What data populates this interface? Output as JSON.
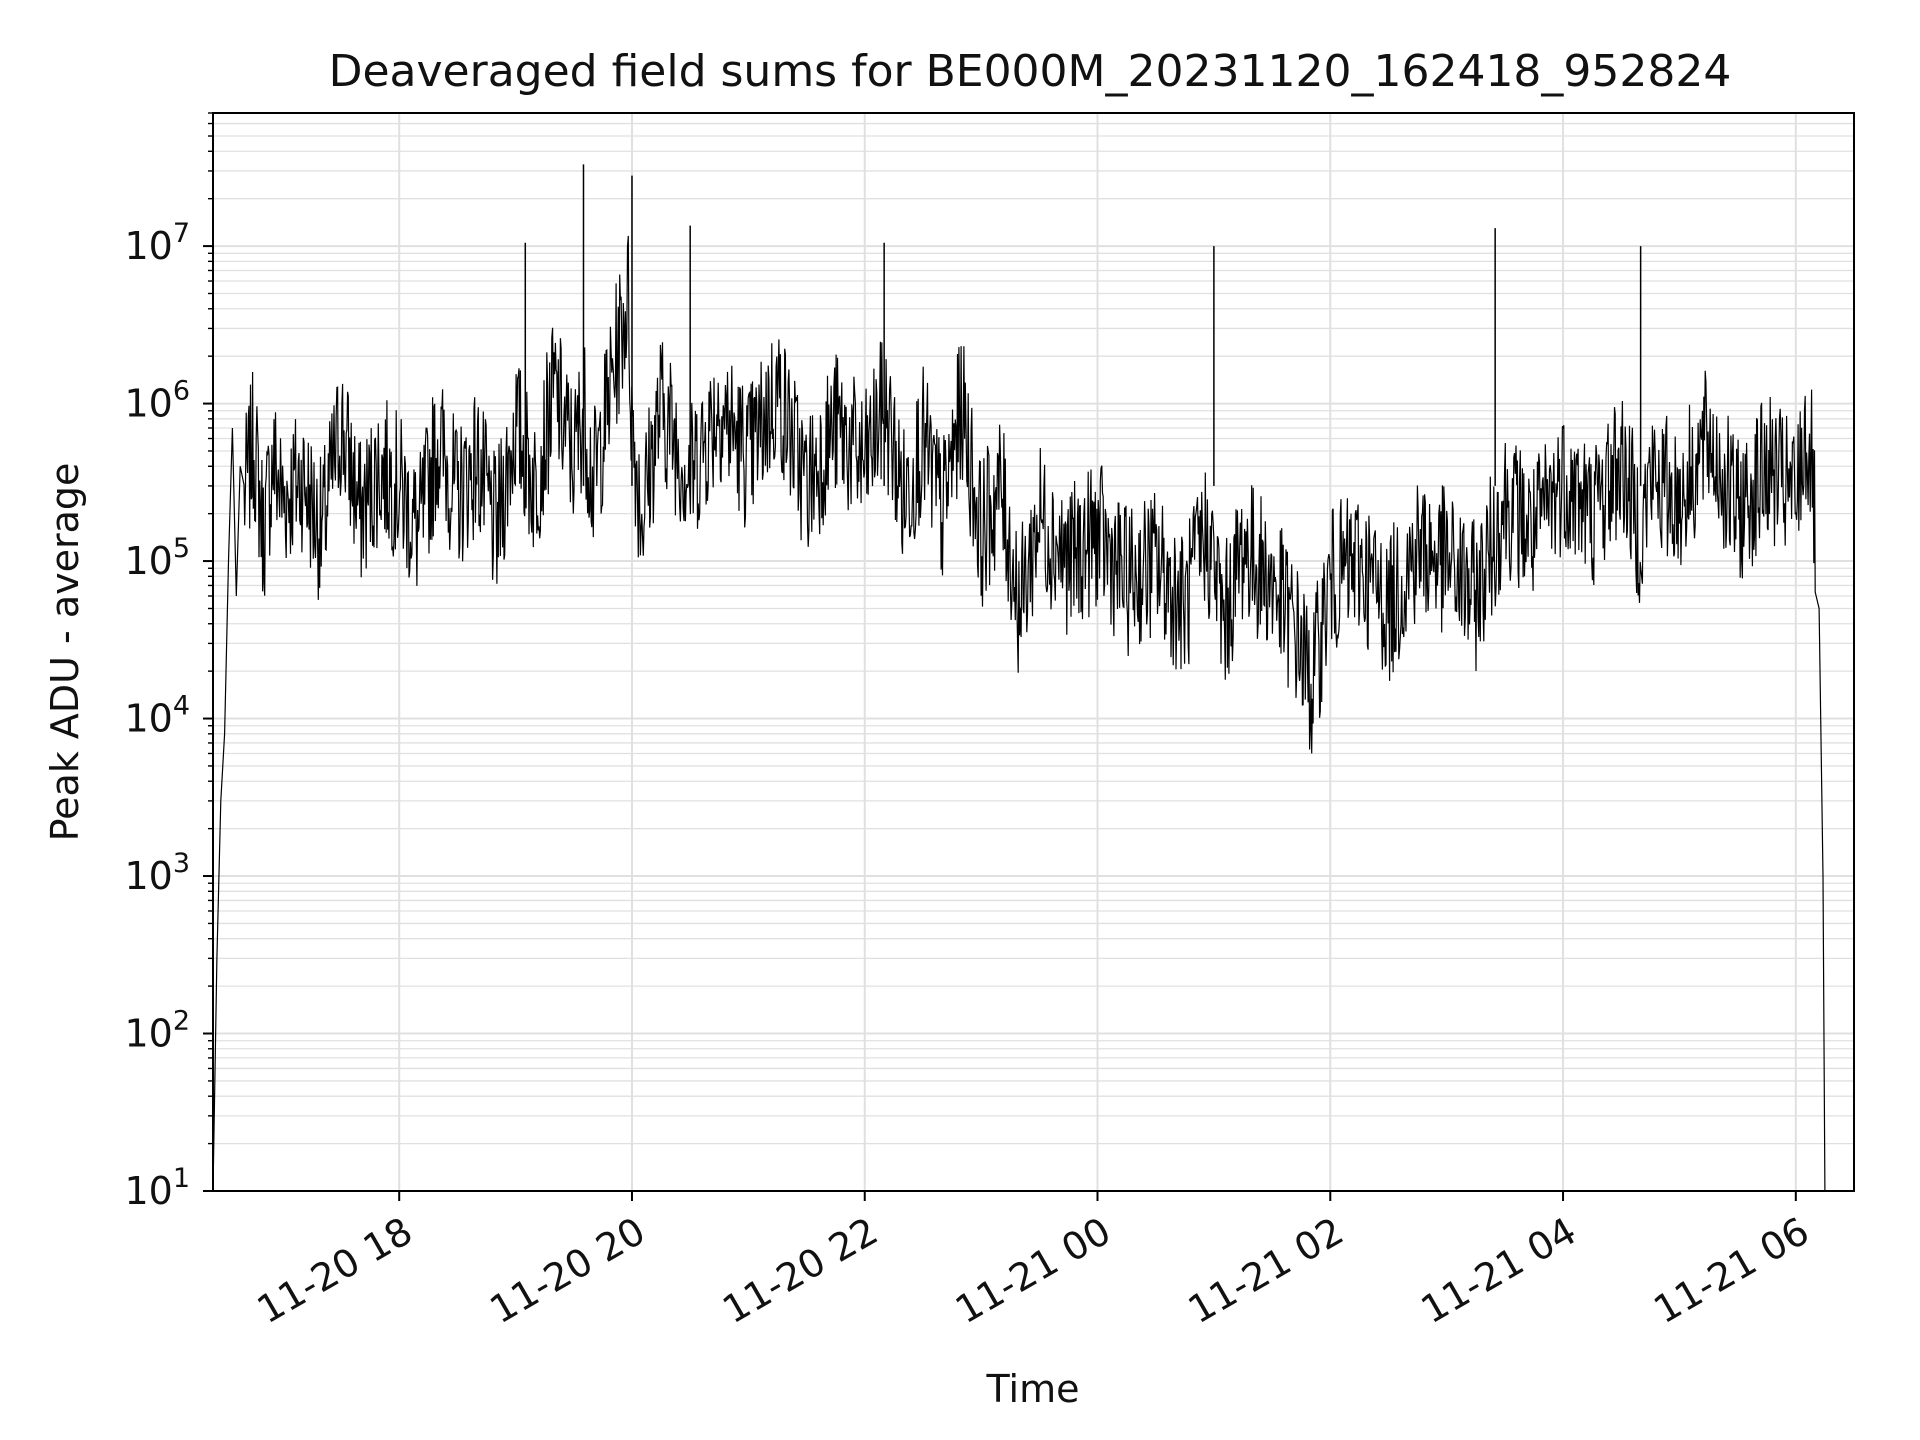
{
  "chart_data": {
    "type": "line",
    "title": "Deaveraged field sums for BE000M_20231120_162418_952824",
    "xlabel": "Time",
    "ylabel": "Peak ADU - average",
    "xlim": [
      "2023-11-20 16:24",
      "2023-11-21 06:30"
    ],
    "ylim": [
      10,
      70000000
    ],
    "yscale": "log",
    "grid": true,
    "line_color": "#000000",
    "grid_color": "#e0e0e0",
    "x_ticks": [
      {
        "value": "2023-11-20 18:00",
        "label": "11-20 18"
      },
      {
        "value": "2023-11-20 20:00",
        "label": "11-20 20"
      },
      {
        "value": "2023-11-20 22:00",
        "label": "11-20 22"
      },
      {
        "value": "2023-11-21 00:00",
        "label": "11-21 00"
      },
      {
        "value": "2023-11-21 02:00",
        "label": "11-21 02"
      },
      {
        "value": "2023-11-21 04:00",
        "label": "11-21 04"
      },
      {
        "value": "2023-11-21 06:00",
        "label": "11-21 06"
      }
    ],
    "y_ticks": [
      {
        "value": 10,
        "base": "10",
        "exp": "1"
      },
      {
        "value": 100,
        "base": "10",
        "exp": "2"
      },
      {
        "value": 1000,
        "base": "10",
        "exp": "3"
      },
      {
        "value": 10000,
        "base": "10",
        "exp": "4"
      },
      {
        "value": 100000,
        "base": "10",
        "exp": "5"
      },
      {
        "value": 1000000,
        "base": "10",
        "exp": "6"
      },
      {
        "value": 10000000,
        "base": "10",
        "exp": "7"
      }
    ],
    "series": [
      {
        "x": [
          "2023-11-20 16:24",
          "2023-11-20 16:26",
          "2023-11-20 16:28",
          "2023-11-20 16:30",
          "2023-11-20 16:32",
          "2023-11-20 16:34",
          "2023-11-20 16:36",
          "2023-11-20 16:38",
          "2023-11-20 16:40",
          "2023-11-20 16:45",
          "2023-11-20 16:50",
          "2023-11-20 16:55",
          "2023-11-20 17:00",
          "2023-11-20 17:10",
          "2023-11-20 17:20",
          "2023-11-20 17:30",
          "2023-11-20 17:40",
          "2023-11-20 17:50",
          "2023-11-20 18:00",
          "2023-11-20 18:10",
          "2023-11-20 18:20",
          "2023-11-20 18:30",
          "2023-11-20 18:40",
          "2023-11-20 18:50",
          "2023-11-20 19:00",
          "2023-11-20 19:10",
          "2023-11-20 19:20",
          "2023-11-20 19:30",
          "2023-11-20 19:35",
          "2023-11-20 19:40",
          "2023-11-20 19:50",
          "2023-11-20 19:58",
          "2023-11-20 20:00",
          "2023-11-20 20:05",
          "2023-11-20 20:15",
          "2023-11-20 20:30",
          "2023-11-20 20:45",
          "2023-11-20 21:00",
          "2023-11-20 21:15",
          "2023-11-20 21:30",
          "2023-11-20 21:45",
          "2023-11-20 22:00",
          "2023-11-20 22:10",
          "2023-11-20 22:20",
          "2023-11-20 22:30",
          "2023-11-20 22:40",
          "2023-11-20 22:50",
          "2023-11-20 23:00",
          "2023-11-20 23:10",
          "2023-11-20 23:20",
          "2023-11-20 23:30",
          "2023-11-20 23:45",
          "2023-11-21 00:00",
          "2023-11-21 00:15",
          "2023-11-21 00:30",
          "2023-11-21 00:45",
          "2023-11-21 00:55",
          "2023-11-21 01:00",
          "2023-11-21 01:05",
          "2023-11-21 01:15",
          "2023-11-21 01:30",
          "2023-11-21 01:45",
          "2023-11-21 01:50",
          "2023-11-21 02:00",
          "2023-11-21 02:15",
          "2023-11-21 02:30",
          "2023-11-21 02:45",
          "2023-11-21 03:00",
          "2023-11-21 03:15",
          "2023-11-21 03:25",
          "2023-11-21 03:30",
          "2023-11-21 03:45",
          "2023-11-21 04:00",
          "2023-11-21 04:15",
          "2023-11-21 04:30",
          "2023-11-21 04:40",
          "2023-11-21 04:45",
          "2023-11-21 05:00",
          "2023-11-21 05:15",
          "2023-11-21 05:30",
          "2023-11-21 05:45",
          "2023-11-21 06:00",
          "2023-11-21 06:05",
          "2023-11-21 06:08",
          "2023-11-21 06:10",
          "2023-11-21 06:12",
          "2023-11-21 06:14",
          "2023-11-21 06:15"
        ],
        "y": [
          10,
          300,
          3000,
          8000,
          100000,
          700000,
          60000,
          400000,
          500000,
          1200000,
          300000,
          900000,
          500000,
          700000,
          300000,
          1500000,
          400000,
          800000,
          600000,
          300000,
          1200000,
          500000,
          900000,
          300000,
          1500000,
          600000,
          2500000,
          900000,
          2000000,
          600000,
          3000000,
          10000000,
          1500000,
          400000,
          2000000,
          700000,
          2000000,
          900000,
          2500000,
          600000,
          1500000,
          800000,
          2000000,
          500000,
          1200000,
          400000,
          2000000,
          300000,
          600000,
          100000,
          400000,
          200000,
          300000,
          150000,
          200000,
          100000,
          300000,
          200000,
          80000,
          250000,
          150000,
          60000,
          30000,
          150000,
          200000,
          100000,
          250000,
          200000,
          120000,
          300000,
          500000,
          300000,
          700000,
          400000,
          900000,
          300000,
          700000,
          500000,
          1200000,
          400000,
          800000,
          500000,
          1300000,
          900000,
          300000,
          50000,
          1000,
          10
        ]
      }
    ],
    "spikes": [
      {
        "x": "2023-11-20 19:05",
        "y": 10500000
      },
      {
        "x": "2023-11-20 19:35",
        "y": 33000000
      },
      {
        "x": "2023-11-20 20:00",
        "y": 28000000
      },
      {
        "x": "2023-11-20 20:30",
        "y": 13500000
      },
      {
        "x": "2023-11-20 22:10",
        "y": 10500000
      },
      {
        "x": "2023-11-21 01:00",
        "y": 10000000
      },
      {
        "x": "2023-11-21 03:25",
        "y": 13000000
      },
      {
        "x": "2023-11-21 04:40",
        "y": 10000000
      }
    ]
  }
}
